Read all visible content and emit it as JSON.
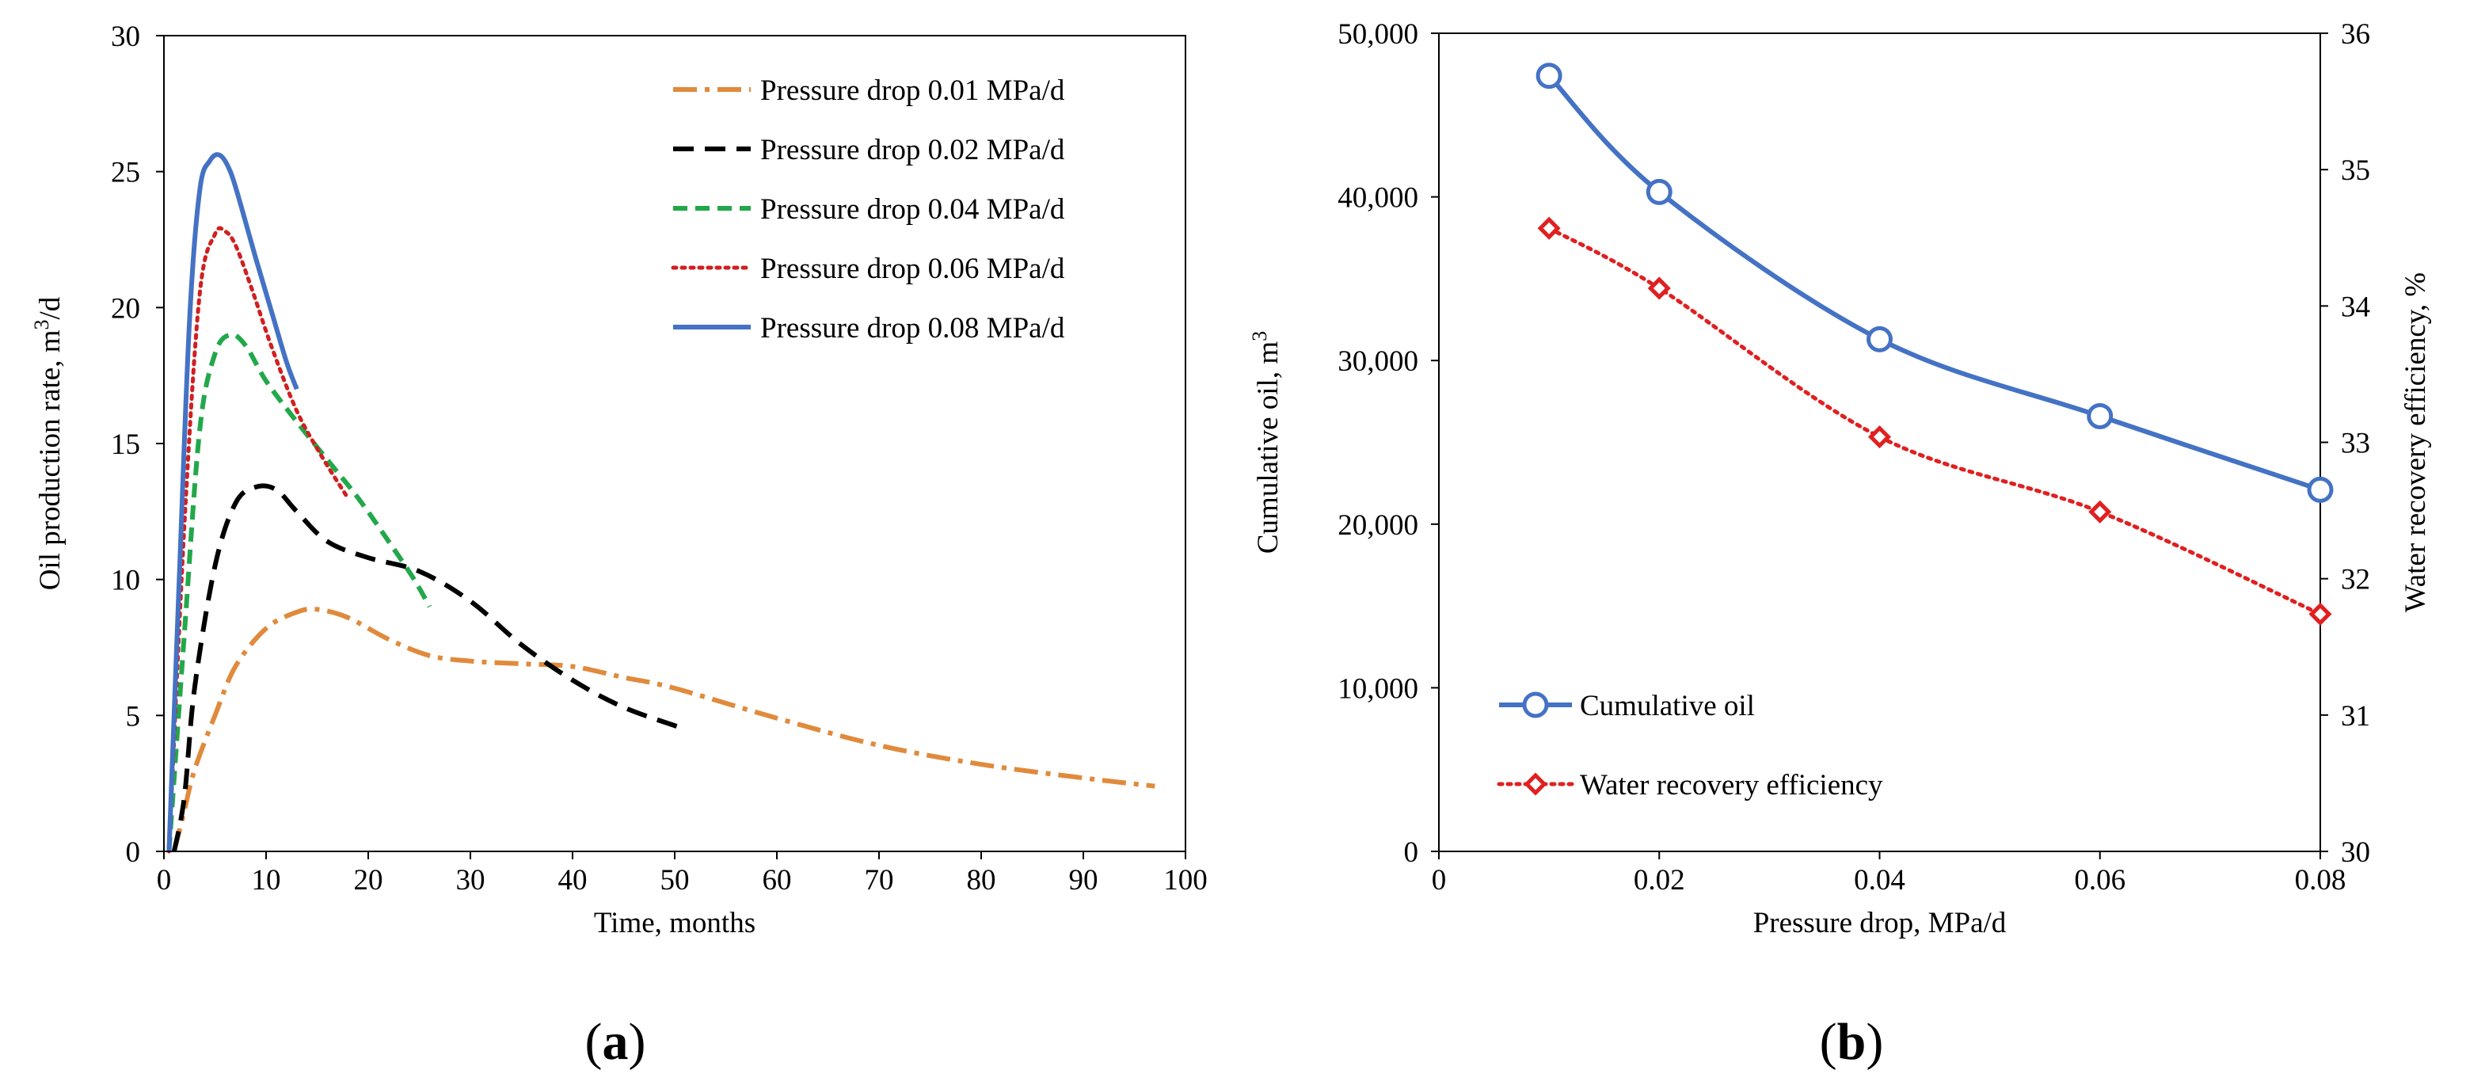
{
  "chart_data": [
    {
      "id": "a",
      "type": "line",
      "panel_label": "a",
      "title": "",
      "xlabel": "Time, months",
      "ylabel": "Oil production rate, m³/d",
      "xlim": [
        0,
        100
      ],
      "ylim": [
        0,
        30
      ],
      "xticks": [
        0,
        10,
        20,
        30,
        40,
        50,
        60,
        70,
        80,
        90,
        100
      ],
      "yticks": [
        0,
        5,
        10,
        15,
        20,
        25,
        30
      ],
      "grid": false,
      "legend_position": "top-right",
      "series": [
        {
          "name": "Pressure drop 0.01 MPa/d",
          "color": "#E08A3C",
          "style": "dashdot",
          "x": [
            1,
            2,
            3,
            5,
            7,
            10,
            13,
            15,
            18,
            22,
            26,
            30,
            35,
            40,
            45,
            50,
            60,
            70,
            80,
            90,
            97
          ],
          "y": [
            0,
            1.5,
            3,
            5,
            6.8,
            8.2,
            8.8,
            8.9,
            8.6,
            7.8,
            7.2,
            7.0,
            6.9,
            6.8,
            6.4,
            6.0,
            4.9,
            3.9,
            3.2,
            2.7,
            2.4
          ]
        },
        {
          "name": "Pressure drop 0.02 MPa/d",
          "color": "#000000",
          "style": "dashed",
          "x": [
            1,
            2,
            3,
            5,
            7,
            9,
            11,
            13,
            16,
            20,
            25,
            30,
            35,
            40,
            45,
            51
          ],
          "y": [
            0,
            2,
            6,
            10.5,
            12.8,
            13.4,
            13.3,
            12.5,
            11.4,
            10.8,
            10.3,
            9.2,
            7.6,
            6.3,
            5.3,
            4.5
          ]
        },
        {
          "name": "Pressure drop 0.04 MPa/d",
          "color": "#22A84A",
          "style": "dashed-short",
          "x": [
            0.5,
            2,
            3.5,
            5,
            6.5,
            8,
            10,
            13,
            16,
            19,
            22,
            24.5,
            26
          ],
          "y": [
            0,
            8,
            15.5,
            18.3,
            19.0,
            18.6,
            17.3,
            15.8,
            14.4,
            13.0,
            11.4,
            10.0,
            9.0
          ]
        },
        {
          "name": "Pressure drop 0.06 MPa/d",
          "color": "#D11F1F",
          "style": "dotted",
          "x": [
            0.5,
            2,
            3.5,
            5,
            6,
            7,
            8.5,
            10.5,
            13,
            15.5,
            18
          ],
          "y": [
            0,
            12,
            20.5,
            22.7,
            22.8,
            22.3,
            20.8,
            18.6,
            16.2,
            14.5,
            13.0
          ]
        },
        {
          "name": "Pressure drop 0.08 MPa/d",
          "color": "#4472C4",
          "style": "solid",
          "x": [
            0.5,
            1.5,
            2.5,
            3.5,
            4.5,
            5.5,
            6.5,
            7.5,
            9,
            10.5,
            12,
            13
          ],
          "y": [
            0,
            10,
            19.5,
            24.3,
            25.4,
            25.6,
            25.0,
            23.8,
            21.8,
            19.9,
            18.0,
            17.0
          ]
        }
      ]
    },
    {
      "id": "b",
      "type": "line",
      "panel_label": "b",
      "title": "",
      "xlabel": "Pressure drop, MPa/d",
      "ylabel": "Cumulative oil, m³",
      "y2label": "Water recovery efficiency, %",
      "xlim": [
        0,
        0.08
      ],
      "ylim": [
        0,
        50000
      ],
      "y2lim": [
        30,
        36
      ],
      "xticks": [
        0,
        0.02,
        0.04,
        0.06,
        0.08
      ],
      "xtick_labels": [
        "0",
        "0.02",
        "0.04",
        "0.06",
        "0.08"
      ],
      "yticks": [
        0,
        10000,
        20000,
        30000,
        40000,
        50000
      ],
      "ytick_labels": [
        "0",
        "10,000",
        "20,000",
        "30,000",
        "40,000",
        "50,000"
      ],
      "y2ticks": [
        30,
        31,
        32,
        33,
        34,
        35,
        36
      ],
      "grid": false,
      "legend_position": "bottom-left",
      "series": [
        {
          "name": "Cumulative oil",
          "axis": "left",
          "color": "#4472C4",
          "style": "solid",
          "marker": "circle",
          "x": [
            0.01,
            0.02,
            0.04,
            0.06,
            0.08
          ],
          "y": [
            47400,
            40300,
            31300,
            26600,
            22100
          ]
        },
        {
          "name": "Water recovery efficiency",
          "axis": "right",
          "color": "#E02020",
          "style": "dotted",
          "marker": "diamond",
          "x": [
            0.01,
            0.02,
            0.04,
            0.06,
            0.08
          ],
          "y": [
            34.57,
            34.13,
            33.04,
            32.49,
            31.74
          ]
        }
      ]
    }
  ]
}
